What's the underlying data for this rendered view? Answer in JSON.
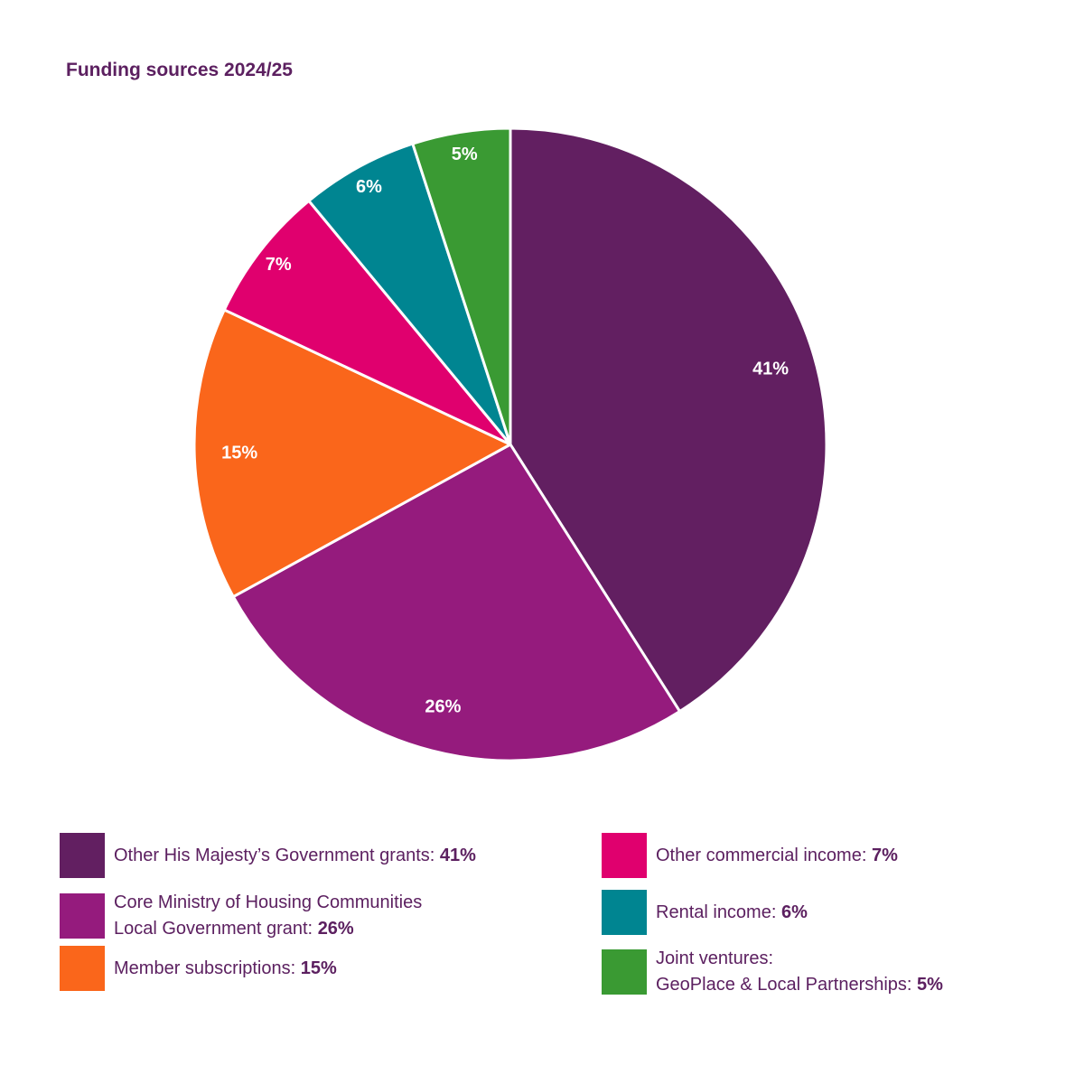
{
  "chart_data": {
    "type": "pie",
    "title": "Funding sources 2024/25",
    "unit": "%",
    "slices": [
      {
        "label_lines": [
          "Other His Majesty’s Government grants: "
        ],
        "value": 41,
        "value_label": "41%",
        "color": "#621f61"
      },
      {
        "label_lines": [
          "Core Ministry of Housing Communities",
          "Local Government grant: "
        ],
        "value": 26,
        "value_label": "26%",
        "color": "#951b7d"
      },
      {
        "label_lines": [
          "Member subscriptions: "
        ],
        "value": 15,
        "value_label": "15%",
        "color": "#fa661b"
      },
      {
        "label_lines": [
          "Other commercial income: "
        ],
        "value": 7,
        "value_label": "7%",
        "color": "#e0006e"
      },
      {
        "label_lines": [
          "Rental income: "
        ],
        "value": 6,
        "value_label": "6%",
        "color": "#008591"
      },
      {
        "label_lines": [
          "Joint ventures:",
          "GeoPlace & Local Partnerships: "
        ],
        "value": 5,
        "value_label": "5%",
        "color": "#3a9a33"
      }
    ],
    "start_angle": "12 o'clock",
    "direction": "clockwise",
    "legend": "bottom, two columns"
  }
}
